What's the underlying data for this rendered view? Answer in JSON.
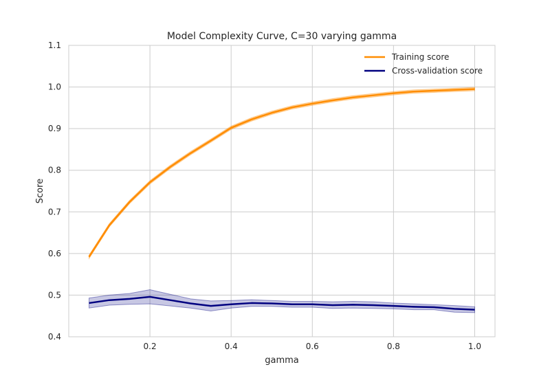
{
  "chart_data": {
    "type": "line",
    "title": "Model Complexity Curve, C=30 varying gamma",
    "xlabel": "gamma",
    "ylabel": "Score",
    "xlim": [
      0.0,
      1.05
    ],
    "ylim": [
      0.4,
      1.1
    ],
    "xticks": [
      "0.2",
      "0.4",
      "0.6",
      "0.8",
      "1.0"
    ],
    "xtick_values": [
      0.2,
      0.4,
      0.6,
      0.8,
      1.0
    ],
    "yticks": [
      "0.4",
      "0.5",
      "0.6",
      "0.7",
      "0.8",
      "0.9",
      "1.0",
      "1.1"
    ],
    "ytick_values": [
      0.4,
      0.5,
      0.6,
      0.7,
      0.8,
      0.9,
      1.0,
      1.1
    ],
    "grid": true,
    "legend_position": "top-right",
    "x": [
      0.05,
      0.1,
      0.15,
      0.2,
      0.25,
      0.3,
      0.35,
      0.4,
      0.45,
      0.5,
      0.55,
      0.6,
      0.65,
      0.7,
      0.75,
      0.8,
      0.85,
      0.9,
      0.95,
      1.0
    ],
    "series": [
      {
        "name": "Training score",
        "color": "#ff8c00",
        "values": [
          0.592,
          0.668,
          0.724,
          0.771,
          0.808,
          0.841,
          0.871,
          0.902,
          0.922,
          0.938,
          0.951,
          0.96,
          0.968,
          0.975,
          0.98,
          0.985,
          0.989,
          0.991,
          0.993,
          0.995
        ],
        "band_halfwidth": 0.004
      },
      {
        "name": "Cross-validation score",
        "color": "#000080",
        "band_color": "#000080",
        "values": [
          0.481,
          0.488,
          0.491,
          0.496,
          0.488,
          0.48,
          0.474,
          0.478,
          0.481,
          0.48,
          0.478,
          0.478,
          0.476,
          0.477,
          0.476,
          0.474,
          0.472,
          0.471,
          0.467,
          0.465
        ],
        "band_halfwidth": [
          0.012,
          0.012,
          0.013,
          0.017,
          0.014,
          0.011,
          0.012,
          0.009,
          0.008,
          0.007,
          0.007,
          0.007,
          0.008,
          0.008,
          0.008,
          0.007,
          0.007,
          0.006,
          0.008,
          0.007
        ]
      }
    ]
  }
}
